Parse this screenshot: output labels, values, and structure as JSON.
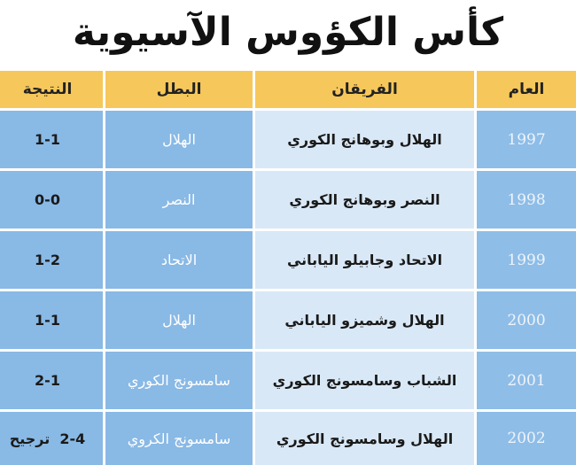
{
  "title": "كأس الكؤوس الآسيوية",
  "table": {
    "header": [
      "العام",
      "الفريقان",
      "البطل",
      "النتيجة"
    ],
    "rows": [
      [
        "1997",
        "الهلال وبوهانج الكوري",
        "الهلال",
        "1-1"
      ],
      [
        "1998",
        "النصر وبوهانج الكوري",
        "النصر",
        "0-0"
      ],
      [
        "1999",
        "الاتحاد وجابيلو الياباني",
        "الاتحاد",
        "1-2"
      ],
      [
        "2000",
        "الهلال وشميزو الياباني",
        "الهلال",
        "1-1"
      ],
      [
        "2001",
        "الشباب وسامسونج الكوري",
        "سامسونج الكوري",
        "2-1"
      ],
      [
        "2002",
        "الهلال وسامسونج الكوري",
        "سامسونج الكروي",
        "2-4  ترجيح"
      ]
    ]
  }
}
